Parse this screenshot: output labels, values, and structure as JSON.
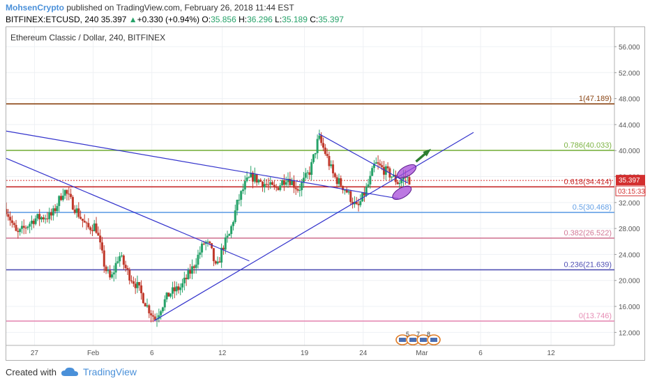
{
  "publish": {
    "author": "MohsenCrypto",
    "text": " published on TradingView.com, February 26, 2018 11:44 EST"
  },
  "ohlc": {
    "symbol": "BITFINEX:ETCUSD, 240",
    "last": "35.397",
    "arrow": "▲",
    "change": "+0.330 (+0.94%)",
    "o_label": "O:",
    "o": "35.856",
    "h_label": "H:",
    "h": "36.296",
    "l_label": "L:",
    "l": "35.189",
    "c_label": "C:",
    "c": "35.397"
  },
  "footer": {
    "created_with": "Created with",
    "brand": "TradingView"
  },
  "colors": {
    "grid": "#eef0f4",
    "axis_text": "#555555",
    "up": "#26a269",
    "down": "#c0392b",
    "trendline": "#3333cc",
    "ellipse": "#a64bd8",
    "arrow": "#2e7d32",
    "price_tag": "#d32f2f"
  },
  "chart_data": {
    "type": "candlestick",
    "title": "Ethereum Classic / Dollar, 240, BITFINEX",
    "y_ticks": [
      "56.000",
      "52.000",
      "48.000",
      "44.000",
      "40.000",
      "36.000",
      "32.000",
      "28.000",
      "24.000",
      "20.000",
      "16.000",
      "12.000"
    ],
    "ylim": [
      10,
      59
    ],
    "x_ticks": [
      "27",
      "Feb",
      "6",
      "12",
      "19",
      "24",
      "Mar",
      "6",
      "12"
    ],
    "x_tick_days": [
      -5,
      0,
      5,
      11,
      18,
      23,
      28,
      33,
      39
    ],
    "x_axis_unit": "days relative to Feb 1, 2018",
    "xlim": [
      -7.4,
      44.4
    ],
    "fib_levels": [
      {
        "ratio": "1",
        "value": "47.189",
        "color": "#8b4513"
      },
      {
        "ratio": "0.786",
        "value": "40.033",
        "color": "#7cb342"
      },
      {
        "ratio": "0.618",
        "value": "34.414",
        "color": "#c62828"
      },
      {
        "ratio": "0.5",
        "value": "30.468",
        "color": "#64a0e6"
      },
      {
        "ratio": "0.382",
        "value": "26.522",
        "color": "#d27896"
      },
      {
        "ratio": "0.236",
        "value": "21.639",
        "color": "#5050b4"
      },
      {
        "ratio": "0",
        "value": "13.746",
        "color": "#e68cb4"
      }
    ],
    "last_price": "35.397",
    "countdown": "03:15:33",
    "trendlines": [
      {
        "x1": -7.4,
        "y1": 43.0,
        "x2": 26.0,
        "y2": 32.6
      },
      {
        "x1": -7.4,
        "y1": 38.8,
        "x2": 13.3,
        "y2": 23.0
      },
      {
        "x1": 5.2,
        "y1": 13.8,
        "x2": 32.4,
        "y2": 42.8
      },
      {
        "x1": 19.2,
        "y1": 42.6,
        "x2": 26.8,
        "y2": 35.0
      }
    ],
    "ellipses": [
      {
        "x": 26.7,
        "y": 36.8
      },
      {
        "x": 26.3,
        "y": 33.5
      }
    ],
    "breakout_arrow": {
      "x1": 27.5,
      "y1": 38.3,
      "x2": 28.6,
      "y2": 40.0
    },
    "event_badges": [
      "5",
      "7",
      "8"
    ],
    "price_series": [
      [
        -7.4,
        31
      ],
      [
        -6.5,
        27
      ],
      [
        -5,
        29.5
      ],
      [
        -3.5,
        30
      ],
      [
        -2.5,
        34
      ],
      [
        -1.5,
        31
      ],
      [
        -0.5,
        28
      ],
      [
        0.2,
        28.5
      ],
      [
        1,
        22
      ],
      [
        1.5,
        20
      ],
      [
        2.2,
        24
      ],
      [
        3,
        21
      ],
      [
        3.8,
        19
      ],
      [
        4.6,
        16
      ],
      [
        5.3,
        14
      ],
      [
        5.8,
        16
      ],
      [
        6.5,
        18
      ],
      [
        7.5,
        19
      ],
      [
        8.5,
        22
      ],
      [
        9.5,
        26
      ],
      [
        10,
        25
      ],
      [
        10.5,
        21.5
      ],
      [
        11,
        25
      ],
      [
        11.6,
        27
      ],
      [
        12.3,
        32
      ],
      [
        13,
        35
      ],
      [
        13.5,
        36
      ],
      [
        14.5,
        35
      ],
      [
        15.5,
        34
      ],
      [
        16.5,
        36
      ],
      [
        17.5,
        34
      ],
      [
        18.5,
        37
      ],
      [
        19.2,
        42
      ],
      [
        19.7,
        40
      ],
      [
        20.5,
        36
      ],
      [
        21.5,
        34
      ],
      [
        22.5,
        31
      ],
      [
        23,
        33
      ],
      [
        23.5,
        35
      ],
      [
        24,
        38
      ],
      [
        24.8,
        37
      ],
      [
        25.5,
        36
      ],
      [
        26,
        35
      ],
      [
        26.5,
        36
      ],
      [
        27,
        35.4
      ]
    ]
  }
}
